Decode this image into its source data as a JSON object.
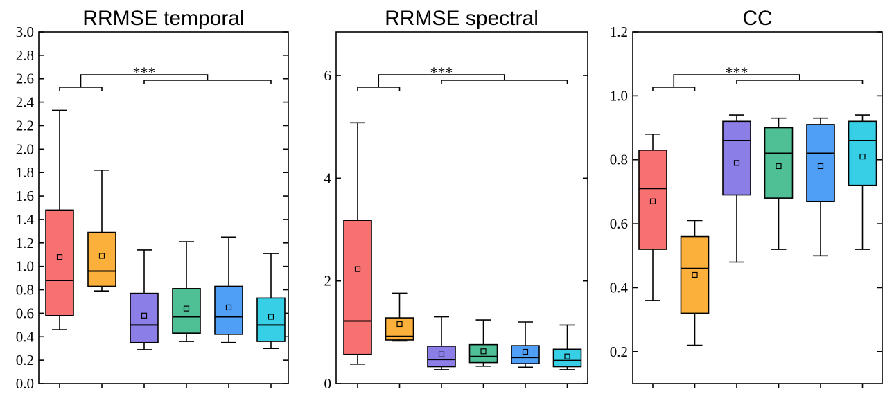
{
  "chart_data": [
    {
      "type": "box",
      "title": "RRMSE temporal",
      "ylim": [
        0,
        3.0
      ],
      "yticks": [
        "0.0",
        "0.2",
        "0.4",
        "0.6",
        "0.8",
        "1.0",
        "1.2",
        "1.4",
        "1.6",
        "1.8",
        "2.0",
        "2.2",
        "2.4",
        "2.6",
        "2.8",
        "3.0"
      ],
      "ytick_values": [
        0,
        0.2,
        0.4,
        0.6,
        0.8,
        1.0,
        1.2,
        1.4,
        1.6,
        1.8,
        2.0,
        2.2,
        2.4,
        2.6,
        2.8,
        3.0
      ],
      "significance": "***",
      "boxes": [
        {
          "whisker_low": 0.46,
          "q1": 0.58,
          "median": 0.88,
          "q3": 1.48,
          "whisker_high": 2.33,
          "mean": 1.08
        },
        {
          "whisker_low": 0.79,
          "q1": 0.83,
          "median": 0.96,
          "q3": 1.29,
          "whisker_high": 1.82,
          "mean": 1.09
        },
        {
          "whisker_low": 0.29,
          "q1": 0.35,
          "median": 0.5,
          "q3": 0.77,
          "whisker_high": 1.14,
          "mean": 0.58
        },
        {
          "whisker_low": 0.36,
          "q1": 0.43,
          "median": 0.57,
          "q3": 0.81,
          "whisker_high": 1.21,
          "mean": 0.64
        },
        {
          "whisker_low": 0.35,
          "q1": 0.42,
          "median": 0.57,
          "q3": 0.83,
          "whisker_high": 1.25,
          "mean": 0.65
        },
        {
          "whisker_low": 0.3,
          "q1": 0.36,
          "median": 0.5,
          "q3": 0.73,
          "whisker_high": 1.11,
          "mean": 0.57
        }
      ]
    },
    {
      "type": "box",
      "title": "RRMSE spectral",
      "ylim": [
        0,
        6.85
      ],
      "yticks": [
        "0",
        "2",
        "4",
        "6"
      ],
      "ytick_values": [
        0,
        2,
        4,
        6
      ],
      "significance": "***",
      "boxes": [
        {
          "whisker_low": 0.38,
          "q1": 0.57,
          "median": 1.22,
          "q3": 3.18,
          "whisker_high": 5.08,
          "mean": 2.23
        },
        {
          "whisker_low": 0.83,
          "q1": 0.85,
          "median": 0.92,
          "q3": 1.28,
          "whisker_high": 1.76,
          "mean": 1.16
        },
        {
          "whisker_low": 0.27,
          "q1": 0.33,
          "median": 0.47,
          "q3": 0.73,
          "whisker_high": 1.3,
          "mean": 0.57
        },
        {
          "whisker_low": 0.34,
          "q1": 0.41,
          "median": 0.53,
          "q3": 0.76,
          "whisker_high": 1.24,
          "mean": 0.63
        },
        {
          "whisker_low": 0.32,
          "q1": 0.39,
          "median": 0.51,
          "q3": 0.74,
          "whisker_high": 1.2,
          "mean": 0.62
        },
        {
          "whisker_low": 0.27,
          "q1": 0.33,
          "median": 0.45,
          "q3": 0.67,
          "whisker_high": 1.14,
          "mean": 0.53
        }
      ]
    },
    {
      "type": "box",
      "title": "CC",
      "ylim": [
        0.1,
        1.2
      ],
      "yticks": [
        "0.2",
        "0.4",
        "0.6",
        "0.8",
        "1.0",
        "1.2"
      ],
      "ytick_values": [
        0.2,
        0.4,
        0.6,
        0.8,
        1.0,
        1.2
      ],
      "significance": "***",
      "boxes": [
        {
          "whisker_low": 0.36,
          "q1": 0.52,
          "median": 0.71,
          "q3": 0.83,
          "whisker_high": 0.88,
          "mean": 0.67
        },
        {
          "whisker_low": 0.22,
          "q1": 0.32,
          "median": 0.46,
          "q3": 0.56,
          "whisker_high": 0.61,
          "mean": 0.44
        },
        {
          "whisker_low": 0.48,
          "q1": 0.69,
          "median": 0.86,
          "q3": 0.92,
          "whisker_high": 0.94,
          "mean": 0.79
        },
        {
          "whisker_low": 0.52,
          "q1": 0.68,
          "median": 0.82,
          "q3": 0.9,
          "whisker_high": 0.93,
          "mean": 0.78
        },
        {
          "whisker_low": 0.5,
          "q1": 0.67,
          "median": 0.82,
          "q3": 0.91,
          "whisker_high": 0.93,
          "mean": 0.78
        },
        {
          "whisker_low": 0.52,
          "q1": 0.72,
          "median": 0.86,
          "q3": 0.92,
          "whisker_high": 0.94,
          "mean": 0.81
        }
      ]
    }
  ],
  "colors": [
    "#f87171",
    "#fbb03b",
    "#8b7ee6",
    "#4fbf96",
    "#4f9ff7",
    "#36cfe6"
  ]
}
